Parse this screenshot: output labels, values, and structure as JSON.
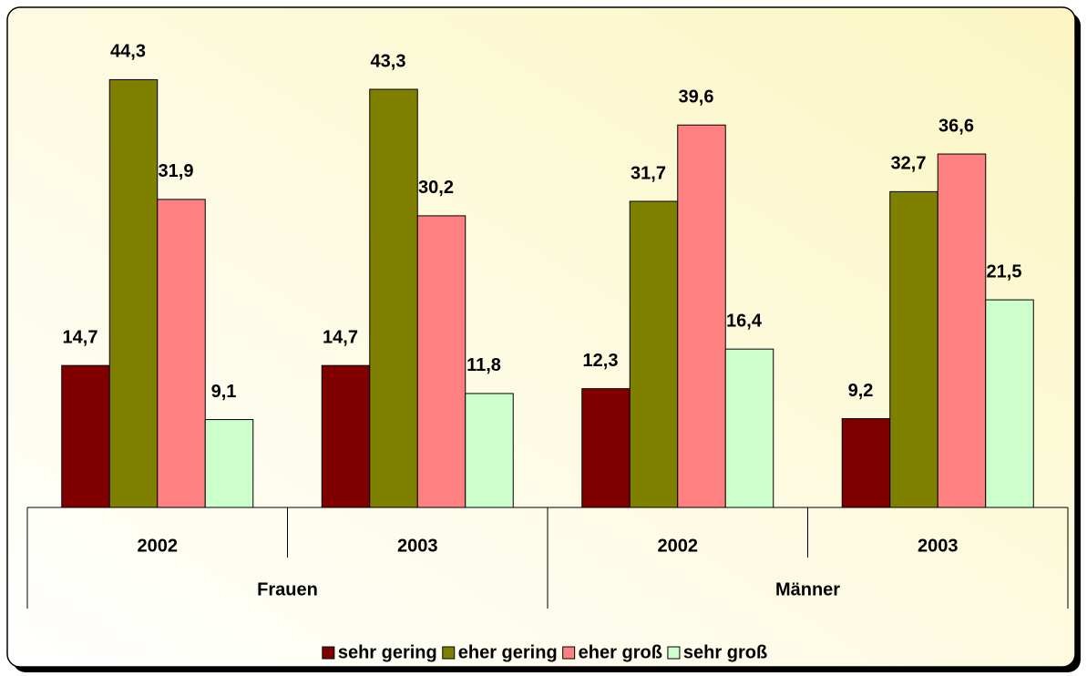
{
  "chart_data": {
    "type": "bar",
    "groups": [
      {
        "name": "Frauen",
        "categories": [
          "2002",
          "2003"
        ]
      },
      {
        "name": "Männer",
        "categories": [
          "2002",
          "2003"
        ]
      }
    ],
    "series": [
      {
        "name": "sehr gering",
        "color": "#800000",
        "values": [
          14.7,
          14.7,
          12.3,
          9.2
        ],
        "value_labels": [
          "14,7",
          "14,7",
          "12,3",
          "9,2"
        ]
      },
      {
        "name": "eher gering",
        "color": "#808000",
        "values": [
          44.3,
          43.3,
          31.7,
          32.7
        ],
        "value_labels": [
          "44,3",
          "43,3",
          "31,7",
          "32,7"
        ]
      },
      {
        "name": "eher groß",
        "color": "#ff8080",
        "values": [
          31.9,
          30.2,
          39.6,
          36.6
        ],
        "value_labels": [
          "31,9",
          "30,2",
          "39,6",
          "36,6"
        ]
      },
      {
        "name": "sehr groß",
        "color": "#ccffcc",
        "values": [
          9.1,
          11.8,
          16.4,
          21.5
        ],
        "value_labels": [
          "9,1",
          "11,8",
          "16,4",
          "21,5"
        ]
      }
    ],
    "ylim": [
      0,
      50
    ],
    "legend": "bottom"
  }
}
